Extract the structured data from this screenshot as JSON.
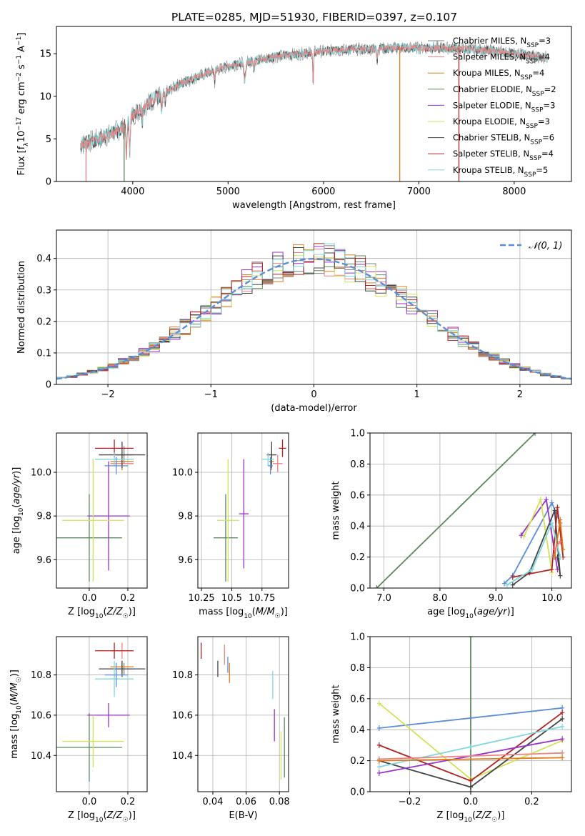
{
  "title": "PLATE=0285, MJD=51930, FIBERID=0397, z=0.107",
  "colors": {
    "Chabrier MILES": "#808080",
    "Salpeter MILES": "#f08080",
    "Kroupa MILES": "#e07b1a",
    "Chabrier ELODIE": "#5a8a5e",
    "Salpeter ELODIE": "#9932cc",
    "Kroupa ELODIE": "#d4e157",
    "Chabrier STELIB": "#444444",
    "Salpeter STELIB": "#b22222",
    "Kroupa STELIB": "#7fd8dc",
    "gauss": "#5b8ed6"
  },
  "chart_data": [
    {
      "id": "spectrum",
      "type": "line",
      "xlabel": "wavelength [Angstrom, rest frame]",
      "ylabel": "Flux [f_λ10^-17 erg cm^-2 s^-1 A^-1]",
      "xlim": [
        3200,
        8600
      ],
      "ylim": [
        0,
        18.2
      ],
      "xticks": [
        4000,
        5000,
        6000,
        7000,
        8000
      ],
      "yticks": [
        0,
        5,
        10,
        15
      ],
      "legend_position": "right",
      "legend": [
        "Chabrier MILES, N_SSP=3",
        "Salpeter MILES, N_SSP=4",
        "Kroupa MILES, N_SSP=4",
        "Chabrier ELODIE, N_SSP=2",
        "Salpeter ELODIE, N_SSP=3",
        "Kroupa ELODIE, N_SSP=3",
        "Chabrier STELIB, N_SSP=6",
        "Salpeter STELIB, N_SSP=4",
        "Kroupa STELIB, N_SSP=5"
      ],
      "continuum": {
        "x": [
          3450,
          3700,
          3900,
          4000,
          4200,
          4500,
          4800,
          5000,
          5300,
          5600,
          6000,
          6300,
          6600,
          6900,
          7200,
          7500,
          7800,
          8000,
          8300
        ],
        "y": [
          4.3,
          5.2,
          6.3,
          7.8,
          9.5,
          11.5,
          12.8,
          13.5,
          14.3,
          14.8,
          15.3,
          15.5,
          15.6,
          15.7,
          15.7,
          15.6,
          15.3,
          15.0,
          14.6
        ]
      },
      "vertical_spikes": [
        {
          "x": 3910,
          "series": "Chabrier ELODIE"
        },
        {
          "x": 6800,
          "series": "Kroupa MILES"
        },
        {
          "x": 7420,
          "series": "Salpeter STELIB"
        },
        {
          "x": 3510,
          "series": "Salpeter MILES"
        }
      ]
    },
    {
      "id": "residual_hist",
      "type": "histogram",
      "xlabel": "(data-model)/error",
      "ylabel": "Normed distribution",
      "xlim": [
        -2.5,
        2.5
      ],
      "ylim": [
        0,
        0.49
      ],
      "xticks": [
        -2,
        -1,
        0,
        1,
        2
      ],
      "yticks": [
        0.0,
        0.1,
        0.2,
        0.3,
        0.4
      ],
      "grid": true,
      "legend_position": "top-right",
      "legend": [
        "𝒩(0, 1)"
      ],
      "bin_width": 0.1,
      "reference": "standard normal density"
    },
    {
      "id": "age_vs_Z",
      "type": "errorbar",
      "xlabel": "Z [log10(Z/Z☉)]",
      "ylabel": "age  [log10(age/yr)]",
      "xlim": [
        -0.17,
        0.3
      ],
      "ylim": [
        9.47,
        10.18
      ],
      "xticks": [
        0.0,
        0.2
      ],
      "yticks": [
        9.6,
        9.8,
        10.0
      ],
      "grid": true,
      "points": [
        {
          "series": "Chabrier MILES",
          "x": 0.18,
          "y": 10.08,
          "xerr": 0.05,
          "yerr": 0.04
        },
        {
          "series": "Salpeter MILES",
          "x": 0.17,
          "y": 10.04,
          "xerr": 0.06,
          "yerr": 0.03
        },
        {
          "series": "Kroupa MILES",
          "x": 0.17,
          "y": 10.05,
          "xerr": 0.06,
          "yerr": 0.04
        },
        {
          "series": "Chabrier ELODIE",
          "x": 0.0,
          "y": 9.7,
          "xerr": 0.17,
          "yerr": 0.2
        },
        {
          "series": "Salpeter ELODIE",
          "x": 0.1,
          "y": 9.8,
          "xerr": 0.11,
          "yerr": 0.25
        },
        {
          "series": "Kroupa ELODIE",
          "x": 0.02,
          "y": 9.78,
          "xerr": 0.16,
          "yerr": 0.28
        },
        {
          "series": "Chabrier STELIB",
          "x": 0.17,
          "y": 10.08,
          "xerr": 0.12,
          "yerr": 0.06
        },
        {
          "series": "Salpeter STELIB",
          "x": 0.13,
          "y": 10.11,
          "xerr": 0.1,
          "yerr": 0.04
        },
        {
          "series": "Kroupa STELIB",
          "x": 0.13,
          "y": 10.06,
          "xerr": 0.1,
          "yerr": 0.03
        },
        {
          "series": "gauss",
          "x": 0.14,
          "y": 10.03,
          "xerr": 0.06,
          "yerr": 0.04
        }
      ]
    },
    {
      "id": "age_vs_mass",
      "type": "errorbar",
      "xlabel": "mass [log10(M/M☉)]",
      "ylabel": "",
      "xlim": [
        10.22,
        10.97
      ],
      "ylim": [
        9.47,
        10.18
      ],
      "xticks": [
        10.25,
        10.5,
        10.75
      ],
      "yticks": [
        9.6,
        9.8,
        10.0
      ],
      "grid": true,
      "points": [
        {
          "series": "Chabrier MILES",
          "x": 10.83,
          "y": 10.08,
          "xerr": 0.03,
          "yerr": 0.04
        },
        {
          "series": "Salpeter MILES",
          "x": 10.88,
          "y": 10.04,
          "xerr": 0.04,
          "yerr": 0.04
        },
        {
          "series": "Kroupa MILES",
          "x": 10.83,
          "y": 10.05,
          "xerr": 0.02,
          "yerr": 0.04
        },
        {
          "series": "Chabrier ELODIE",
          "x": 10.45,
          "y": 9.7,
          "xerr": 0.1,
          "yerr": 0.2
        },
        {
          "series": "Salpeter ELODIE",
          "x": 10.6,
          "y": 9.81,
          "xerr": 0.04,
          "yerr": 0.25
        },
        {
          "series": "Kroupa ELODIE",
          "x": 10.47,
          "y": 9.78,
          "xerr": 0.09,
          "yerr": 0.28
        },
        {
          "series": "Chabrier STELIB",
          "x": 10.83,
          "y": 10.08,
          "xerr": 0.04,
          "yerr": 0.06
        },
        {
          "series": "Salpeter STELIB",
          "x": 10.92,
          "y": 10.11,
          "xerr": 0.03,
          "yerr": 0.04
        },
        {
          "series": "Kroupa STELIB",
          "x": 10.8,
          "y": 10.06,
          "xerr": 0.05,
          "yerr": 0.03
        },
        {
          "series": "gauss",
          "x": 10.82,
          "y": 10.03,
          "xerr": 0.02,
          "yerr": 0.04
        }
      ]
    },
    {
      "id": "massweight_vs_age",
      "type": "line",
      "xlabel": "age  [log10(age/yr)]",
      "ylabel": "mass weight",
      "xlim": [
        6.75,
        10.35
      ],
      "ylim": [
        0,
        1
      ],
      "xticks": [
        7,
        8,
        9,
        10
      ],
      "yticks": [
        0.0,
        0.2,
        0.4,
        0.6,
        0.8,
        1.0
      ],
      "grid": true,
      "series": [
        {
          "name": "Chabrier ELODIE",
          "x": [
            6.87,
            9.7
          ],
          "y": [
            0.0,
            1.0
          ]
        },
        {
          "name": "gauss",
          "x": [
            9.15,
            9.3,
            10.0,
            10.15
          ],
          "y": [
            0.03,
            0.08,
            0.55,
            0.42
          ]
        },
        {
          "name": "Salpeter ELODIE",
          "x": [
            9.45,
            9.9,
            10.1
          ],
          "y": [
            0.34,
            0.57,
            0.12
          ]
        },
        {
          "name": "Kroupa ELODIE",
          "x": [
            9.5,
            9.8,
            10.0
          ],
          "y": [
            0.33,
            0.57,
            0.1
          ]
        },
        {
          "name": "Chabrier STELIB",
          "x": [
            9.3,
            9.6,
            10.05,
            10.15,
            10.1
          ],
          "y": [
            0.02,
            0.1,
            0.5,
            0.08,
            0.2
          ]
        },
        {
          "name": "Salpeter STELIB",
          "x": [
            9.3,
            10.0,
            10.1,
            10.2
          ],
          "y": [
            0.07,
            0.12,
            0.52,
            0.2
          ]
        },
        {
          "name": "Kroupa STELIB",
          "x": [
            9.2,
            9.65,
            10.0,
            10.15
          ],
          "y": [
            0.02,
            0.12,
            0.42,
            0.2
          ]
        },
        {
          "name": "Kroupa MILES",
          "x": [
            10.05,
            10.15,
            10.2
          ],
          "y": [
            0.2,
            0.44,
            0.25
          ]
        },
        {
          "name": "Salpeter MILES",
          "x": [
            10.05,
            10.15
          ],
          "y": [
            0.25,
            0.3
          ]
        }
      ]
    },
    {
      "id": "mass_vs_Z",
      "type": "errorbar",
      "xlabel": "Z [log10(Z/Z☉)]",
      "ylabel": "mass [log10(M/M☉)]",
      "xlim": [
        -0.17,
        0.3
      ],
      "ylim": [
        10.22,
        10.99
      ],
      "xticks": [
        0.0,
        0.2
      ],
      "yticks": [
        10.4,
        10.6,
        10.8
      ],
      "grid": true,
      "points": [
        {
          "series": "Chabrier MILES",
          "x": 0.18,
          "y": 10.83,
          "xerr": 0.05,
          "yerr": 0.03
        },
        {
          "series": "Salpeter MILES",
          "x": 0.17,
          "y": 10.92,
          "xerr": 0.06,
          "yerr": 0.04
        },
        {
          "series": "Kroupa MILES",
          "x": 0.17,
          "y": 10.84,
          "xerr": 0.06,
          "yerr": 0.03
        },
        {
          "series": "Chabrier ELODIE",
          "x": 0.0,
          "y": 10.44,
          "xerr": 0.17,
          "yerr": 0.17
        },
        {
          "series": "Salpeter ELODIE",
          "x": 0.1,
          "y": 10.6,
          "xerr": 0.11,
          "yerr": 0.06
        },
        {
          "series": "Kroupa ELODIE",
          "x": 0.02,
          "y": 10.47,
          "xerr": 0.16,
          "yerr": 0.13
        },
        {
          "series": "Chabrier STELIB",
          "x": 0.17,
          "y": 10.83,
          "xerr": 0.12,
          "yerr": 0.04
        },
        {
          "series": "Salpeter STELIB",
          "x": 0.13,
          "y": 10.92,
          "xerr": 0.1,
          "yerr": 0.04
        },
        {
          "series": "Kroupa STELIB",
          "x": 0.13,
          "y": 10.78,
          "xerr": 0.1,
          "yerr": 0.09
        },
        {
          "series": "gauss",
          "x": 0.14,
          "y": 10.8,
          "xerr": 0.06,
          "yerr": 0.06
        }
      ]
    },
    {
      "id": "mass_vs_ebv",
      "type": "errorbar",
      "xlabel": "E(B-V)",
      "ylabel": "",
      "xlim": [
        0.031,
        0.0855
      ],
      "ylim": [
        10.22,
        10.99
      ],
      "xticks": [
        0.04,
        0.06,
        0.08
      ],
      "yticks": [
        10.4,
        10.6,
        10.8
      ],
      "grid": true,
      "points": [
        {
          "series": "Salpeter STELIB",
          "x": 0.033,
          "y": 10.92,
          "xerr": 0,
          "yerr": 0.04
        },
        {
          "series": "Chabrier STELIB",
          "x": 0.043,
          "y": 10.83,
          "xerr": 0,
          "yerr": 0.04
        },
        {
          "series": "Salpeter MILES",
          "x": 0.047,
          "y": 10.9,
          "xerr": 0,
          "yerr": 0.05
        },
        {
          "series": "gauss",
          "x": 0.049,
          "y": 10.85,
          "xerr": 0,
          "yerr": 0.04
        },
        {
          "series": "Kroupa MILES",
          "x": 0.05,
          "y": 10.81,
          "xerr": 0,
          "yerr": 0.05
        },
        {
          "series": "Kroupa STELIB",
          "x": 0.076,
          "y": 10.75,
          "xerr": 0,
          "yerr": 0.07
        },
        {
          "series": "Salpeter ELODIE",
          "x": 0.077,
          "y": 10.55,
          "xerr": 0,
          "yerr": 0.08
        },
        {
          "series": "Kroupa ELODIE",
          "x": 0.081,
          "y": 10.4,
          "xerr": 0,
          "yerr": 0.12
        },
        {
          "series": "Chabrier ELODIE",
          "x": 0.083,
          "y": 10.44,
          "xerr": 0,
          "yerr": 0.15
        }
      ]
    },
    {
      "id": "massweight_vs_Z",
      "type": "line",
      "xlabel": "Z [log10(Z/Z☉)]",
      "ylabel": "mass weight",
      "xlim": [
        -0.33,
        0.33
      ],
      "ylim": [
        0,
        1
      ],
      "xticks": [
        -0.2,
        0.0,
        0.2
      ],
      "yticks": [
        0.0,
        0.2,
        0.4,
        0.6,
        0.8,
        1.0
      ],
      "grid": true,
      "series": [
        {
          "name": "Chabrier ELODIE",
          "x": [
            0.0,
            0.0
          ],
          "y": [
            0.0,
            1.0
          ]
        },
        {
          "name": "gauss",
          "x": [
            -0.3,
            0.3
          ],
          "y": [
            0.41,
            0.54
          ]
        },
        {
          "name": "Kroupa ELODIE",
          "x": [
            -0.3,
            0.0,
            0.3
          ],
          "y": [
            0.57,
            0.08,
            0.33
          ]
        },
        {
          "name": "Salpeter STELIB",
          "x": [
            -0.3,
            0.0,
            0.3
          ],
          "y": [
            0.3,
            0.07,
            0.51
          ]
        },
        {
          "name": "Chabrier STELIB",
          "x": [
            -0.3,
            0.0,
            0.3
          ],
          "y": [
            0.2,
            0.03,
            0.47
          ]
        },
        {
          "name": "Kroupa STELIB",
          "x": [
            -0.3,
            0.0,
            0.3
          ],
          "y": [
            0.16,
            0.29,
            0.42
          ]
        },
        {
          "name": "Salpeter ELODIE",
          "x": [
            -0.3,
            0.3
          ],
          "y": [
            0.12,
            0.34
          ]
        },
        {
          "name": "Salpeter MILES",
          "x": [
            -0.3,
            0.3
          ],
          "y": [
            0.21,
            0.25
          ]
        },
        {
          "name": "Kroupa MILES",
          "x": [
            -0.3,
            0.3
          ],
          "y": [
            0.2,
            0.22
          ]
        }
      ]
    }
  ]
}
